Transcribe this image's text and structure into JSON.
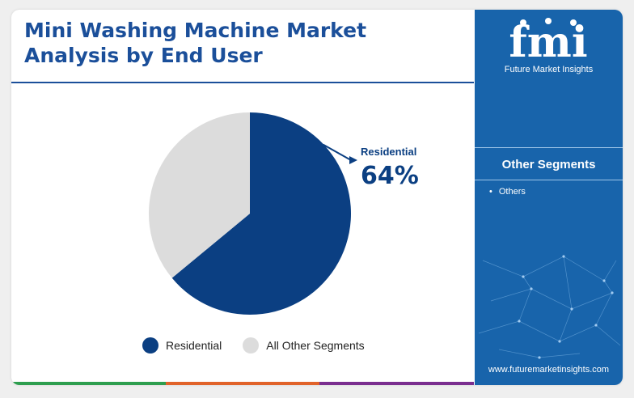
{
  "title": "Mini Washing Machine Market Analysis by End User",
  "chart_data": {
    "type": "pie",
    "categories": [
      "Residential",
      "All Other Segments"
    ],
    "values": [
      64,
      36
    ],
    "colors": [
      "#0b3f82",
      "#dcdcdc"
    ],
    "annotation": {
      "label": "Residential",
      "value": "64%"
    },
    "legend_position": "bottom"
  },
  "legend": {
    "items": [
      {
        "label": "Residential"
      },
      {
        "label": "All Other Segments"
      }
    ]
  },
  "sidebar": {
    "brand": "fmi",
    "brand_full": "Future Market Insights",
    "segments_title": "Other Segments",
    "segments": [
      "Others"
    ],
    "url": "www.futuremarketinsights.com"
  },
  "colors": {
    "brand_blue": "#1864ab",
    "title_blue": "#1b4f9a",
    "bottom_bar": [
      "#2e9e4f",
      "#e1632a",
      "#7a2e8f"
    ]
  }
}
